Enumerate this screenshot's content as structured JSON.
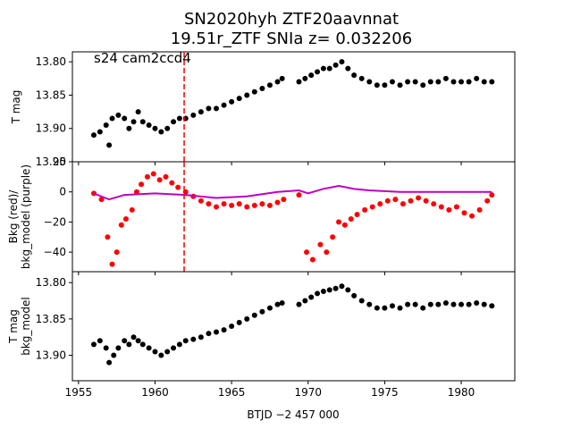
{
  "figure": {
    "title_line1": "SN2020hyh  ZTF20aavnnat",
    "title_line2": "19.51r_ZTF SNIa z= 0.032206",
    "annotation": "s24 cam2ccd4",
    "xlabel": "BTJD −2 457 000"
  },
  "colors": {
    "data": "#000000",
    "bkg": "#ff0000",
    "bkg_model": "#bf00bf",
    "marker_line": "#ff0000"
  },
  "chart_data": [
    {
      "type": "scatter",
      "panel": "T mag",
      "ylabel": "T mag",
      "ylim": [
        13.95,
        13.785
      ],
      "y_inverted": true,
      "yticks": [
        13.8,
        13.85,
        13.9,
        13.95
      ],
      "ytick_labels": [
        "13.80",
        "13.85",
        "13.90",
        "13.95"
      ],
      "xlim": [
        1954.6,
        1983.5
      ],
      "vline_x": 1961.9,
      "series": [
        {
          "color": "black",
          "points": [
            [
              1956.0,
              13.91
            ],
            [
              1956.4,
              13.905
            ],
            [
              1956.8,
              13.895
            ],
            [
              1957.0,
              13.925
            ],
            [
              1957.2,
              13.885
            ],
            [
              1957.6,
              13.88
            ],
            [
              1958.0,
              13.885
            ],
            [
              1958.3,
              13.9
            ],
            [
              1958.6,
              13.89
            ],
            [
              1958.9,
              13.875
            ],
            [
              1959.2,
              13.89
            ],
            [
              1959.6,
              13.895
            ],
            [
              1960.0,
              13.9
            ],
            [
              1960.4,
              13.905
            ],
            [
              1960.8,
              13.9
            ],
            [
              1961.2,
              13.89
            ],
            [
              1961.6,
              13.885
            ],
            [
              1962.0,
              13.885
            ],
            [
              1962.5,
              13.88
            ],
            [
              1963.0,
              13.875
            ],
            [
              1963.5,
              13.87
            ],
            [
              1964.0,
              13.87
            ],
            [
              1964.5,
              13.865
            ],
            [
              1965.0,
              13.86
            ],
            [
              1965.5,
              13.855
            ],
            [
              1966.0,
              13.85
            ],
            [
              1966.5,
              13.845
            ],
            [
              1967.0,
              13.84
            ],
            [
              1967.5,
              13.835
            ],
            [
              1968.0,
              13.83
            ],
            [
              1968.3,
              13.825
            ],
            [
              1969.4,
              13.83
            ],
            [
              1969.8,
              13.825
            ],
            [
              1970.2,
              13.82
            ],
            [
              1970.6,
              13.815
            ],
            [
              1971.0,
              13.81
            ],
            [
              1971.4,
              13.81
            ],
            [
              1971.8,
              13.805
            ],
            [
              1972.2,
              13.8
            ],
            [
              1972.6,
              13.81
            ],
            [
              1973.0,
              13.82
            ],
            [
              1973.5,
              13.825
            ],
            [
              1974.0,
              13.83
            ],
            [
              1974.5,
              13.835
            ],
            [
              1975.0,
              13.835
            ],
            [
              1975.5,
              13.83
            ],
            [
              1976.0,
              13.835
            ],
            [
              1976.5,
              13.83
            ],
            [
              1977.0,
              13.83
            ],
            [
              1977.5,
              13.835
            ],
            [
              1978.0,
              13.83
            ],
            [
              1978.5,
              13.83
            ],
            [
              1979.0,
              13.825
            ],
            [
              1979.5,
              13.83
            ],
            [
              1980.0,
              13.83
            ],
            [
              1980.5,
              13.83
            ],
            [
              1981.0,
              13.825
            ],
            [
              1981.5,
              13.83
            ],
            [
              1982.0,
              13.83
            ]
          ]
        }
      ]
    },
    {
      "type": "scatter",
      "panel": "Bkg",
      "ylabel": "Bkg (red)/\nbkg_model (purple)",
      "ylim": [
        -53,
        20
      ],
      "yticks": [
        20,
        0,
        -20,
        -40
      ],
      "ytick_labels": [
        "20",
        "0",
        "−20",
        "−40"
      ],
      "xlim": [
        1954.6,
        1983.5
      ],
      "vline_x": 1961.9,
      "series": [
        {
          "color": "red",
          "points": [
            [
              1956.0,
              -1
            ],
            [
              1956.5,
              -5
            ],
            [
              1956.9,
              -30
            ],
            [
              1957.2,
              -48
            ],
            [
              1957.5,
              -40
            ],
            [
              1957.8,
              -22
            ],
            [
              1958.1,
              -18
            ],
            [
              1958.5,
              -12
            ],
            [
              1958.8,
              0
            ],
            [
              1959.1,
              5
            ],
            [
              1959.5,
              10
            ],
            [
              1959.9,
              12
            ],
            [
              1960.3,
              8
            ],
            [
              1960.7,
              10
            ],
            [
              1961.1,
              6
            ],
            [
              1961.5,
              3
            ],
            [
              1962.0,
              0
            ],
            [
              1962.5,
              -3
            ],
            [
              1963.0,
              -6
            ],
            [
              1963.5,
              -8
            ],
            [
              1964.0,
              -10
            ],
            [
              1964.5,
              -8
            ],
            [
              1965.0,
              -9
            ],
            [
              1965.5,
              -8
            ],
            [
              1966.0,
              -10
            ],
            [
              1966.5,
              -9
            ],
            [
              1967.0,
              -8
            ],
            [
              1967.5,
              -9
            ],
            [
              1968.0,
              -7
            ],
            [
              1968.4,
              -5
            ],
            [
              1969.4,
              -2
            ],
            [
              1969.9,
              -40
            ],
            [
              1970.3,
              -45
            ],
            [
              1970.8,
              -35
            ],
            [
              1971.2,
              -40
            ],
            [
              1971.6,
              -30
            ],
            [
              1972.0,
              -20
            ],
            [
              1972.4,
              -22
            ],
            [
              1972.8,
              -18
            ],
            [
              1973.2,
              -15
            ],
            [
              1973.7,
              -12
            ],
            [
              1974.2,
              -10
            ],
            [
              1974.7,
              -8
            ],
            [
              1975.2,
              -6
            ],
            [
              1975.7,
              -5
            ],
            [
              1976.2,
              -8
            ],
            [
              1976.7,
              -6
            ],
            [
              1977.2,
              -4
            ],
            [
              1977.7,
              -6
            ],
            [
              1978.2,
              -8
            ],
            [
              1978.7,
              -10
            ],
            [
              1979.2,
              -12
            ],
            [
              1979.7,
              -10
            ],
            [
              1980.2,
              -14
            ],
            [
              1980.7,
              -16
            ],
            [
              1981.2,
              -12
            ],
            [
              1981.7,
              -6
            ],
            [
              1982.0,
              -2
            ]
          ]
        },
        {
          "color": "purple",
          "points": [
            [
              1956.0,
              -1
            ],
            [
              1957.0,
              -5
            ],
            [
              1958.0,
              -2
            ],
            [
              1960.0,
              -1
            ],
            [
              1962.0,
              -2
            ],
            [
              1964.0,
              -4
            ],
            [
              1966.0,
              -3
            ],
            [
              1968.0,
              0
            ],
            [
              1969.4,
              1
            ],
            [
              1970.0,
              -1
            ],
            [
              1971.0,
              2
            ],
            [
              1972.0,
              4
            ],
            [
              1973.0,
              2
            ],
            [
              1974.0,
              1
            ],
            [
              1976.0,
              0
            ],
            [
              1978.0,
              0
            ],
            [
              1980.0,
              0
            ],
            [
              1982.0,
              0
            ]
          ]
        }
      ]
    },
    {
      "type": "scatter",
      "panel": "T mag - bkg_model",
      "ylabel": "T mag\nbkg_model",
      "ylim": [
        13.935,
        13.785
      ],
      "y_inverted": true,
      "yticks": [
        13.8,
        13.85,
        13.9
      ],
      "ytick_labels": [
        "13.80",
        "13.85",
        "13.90"
      ],
      "xlim": [
        1954.6,
        1983.5
      ],
      "xticks": [
        1955,
        1960,
        1965,
        1970,
        1975,
        1980
      ],
      "xtick_labels": [
        "1955",
        "1960",
        "1965",
        "1970",
        "1975",
        "1980"
      ],
      "series": [
        {
          "color": "black",
          "points": [
            [
              1956.0,
              13.885
            ],
            [
              1956.4,
              13.88
            ],
            [
              1956.8,
              13.89
            ],
            [
              1957.0,
              13.91
            ],
            [
              1957.3,
              13.9
            ],
            [
              1957.6,
              13.89
            ],
            [
              1958.0,
              13.88
            ],
            [
              1958.3,
              13.885
            ],
            [
              1958.6,
              13.875
            ],
            [
              1958.9,
              13.88
            ],
            [
              1959.2,
              13.885
            ],
            [
              1959.6,
              13.89
            ],
            [
              1960.0,
              13.895
            ],
            [
              1960.4,
              13.9
            ],
            [
              1960.8,
              13.895
            ],
            [
              1961.2,
              13.89
            ],
            [
              1961.6,
              13.885
            ],
            [
              1962.0,
              13.88
            ],
            [
              1962.5,
              13.878
            ],
            [
              1963.0,
              13.875
            ],
            [
              1963.5,
              13.87
            ],
            [
              1964.0,
              13.868
            ],
            [
              1964.5,
              13.865
            ],
            [
              1965.0,
              13.86
            ],
            [
              1965.5,
              13.855
            ],
            [
              1966.0,
              13.85
            ],
            [
              1966.5,
              13.845
            ],
            [
              1967.0,
              13.84
            ],
            [
              1967.5,
              13.835
            ],
            [
              1968.0,
              13.83
            ],
            [
              1968.3,
              13.828
            ],
            [
              1969.4,
              13.83
            ],
            [
              1969.8,
              13.825
            ],
            [
              1970.2,
              13.82
            ],
            [
              1970.6,
              13.815
            ],
            [
              1971.0,
              13.812
            ],
            [
              1971.4,
              13.81
            ],
            [
              1971.8,
              13.808
            ],
            [
              1972.2,
              13.805
            ],
            [
              1972.6,
              13.81
            ],
            [
              1973.0,
              13.818
            ],
            [
              1973.5,
              13.825
            ],
            [
              1974.0,
              13.83
            ],
            [
              1974.5,
              13.835
            ],
            [
              1975.0,
              13.835
            ],
            [
              1975.5,
              13.832
            ],
            [
              1976.0,
              13.835
            ],
            [
              1976.5,
              13.83
            ],
            [
              1977.0,
              13.83
            ],
            [
              1977.5,
              13.835
            ],
            [
              1978.0,
              13.83
            ],
            [
              1978.5,
              13.83
            ],
            [
              1979.0,
              13.828
            ],
            [
              1979.5,
              13.83
            ],
            [
              1980.0,
              13.83
            ],
            [
              1980.5,
              13.83
            ],
            [
              1981.0,
              13.828
            ],
            [
              1981.5,
              13.83
            ],
            [
              1982.0,
              13.832
            ]
          ]
        }
      ]
    }
  ]
}
